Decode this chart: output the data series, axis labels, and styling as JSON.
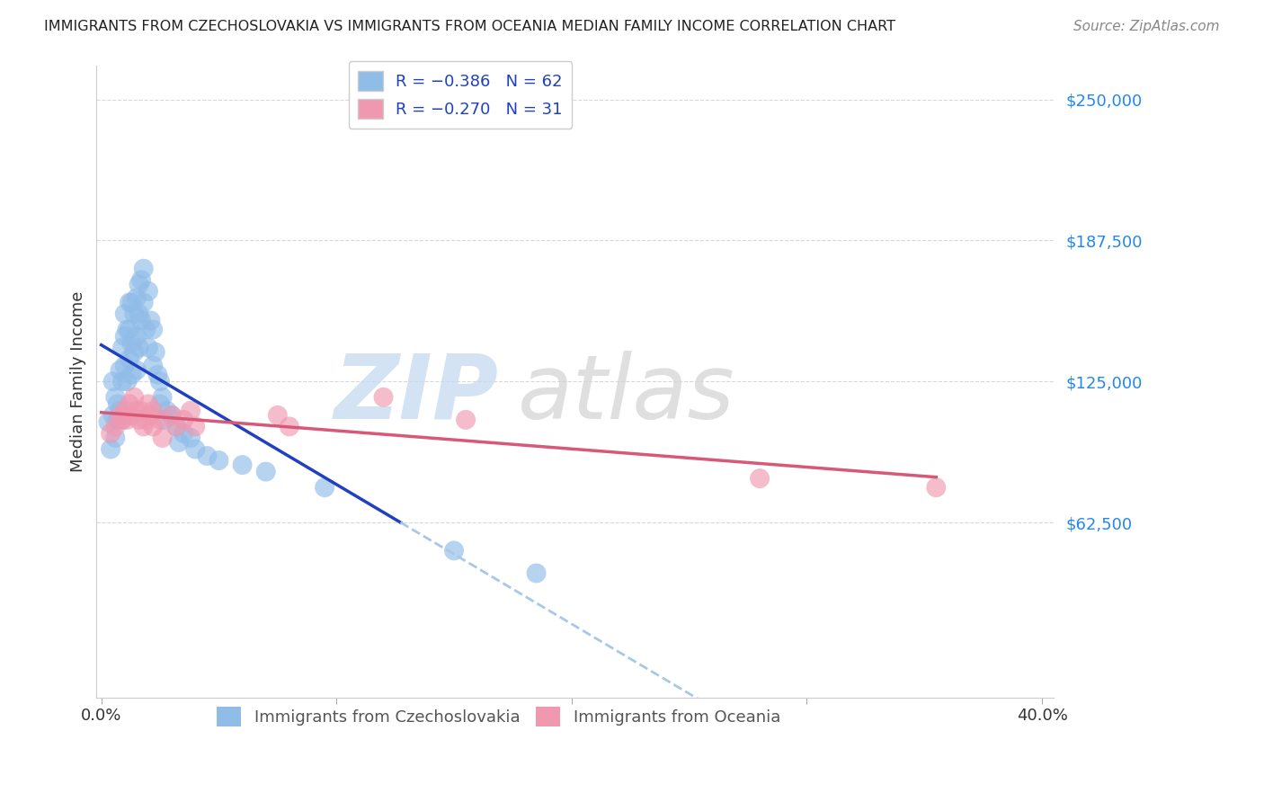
{
  "title": "IMMIGRANTS FROM CZECHOSLOVAKIA VS IMMIGRANTS FROM OCEANIA MEDIAN FAMILY INCOME CORRELATION CHART",
  "source": "Source: ZipAtlas.com",
  "ylabel": "Median Family Income",
  "ytick_labels": [
    "$62,500",
    "$125,000",
    "$187,500",
    "$250,000"
  ],
  "ytick_values": [
    62500,
    125000,
    187500,
    250000
  ],
  "ylim": [
    -15000,
    265000
  ],
  "xlim": [
    -0.002,
    0.405
  ],
  "blue_scatter_color": "#90bce8",
  "pink_scatter_color": "#f098b0",
  "blue_line_color": "#2040c0",
  "pink_line_color": "#d85878",
  "dashed_line_color": "#a8c8e8",
  "grid_color": "#d8d8d8",
  "blue_x": [
    0.003,
    0.004,
    0.005,
    0.005,
    0.006,
    0.006,
    0.007,
    0.007,
    0.008,
    0.008,
    0.009,
    0.009,
    0.009,
    0.01,
    0.01,
    0.01,
    0.011,
    0.011,
    0.012,
    0.012,
    0.012,
    0.013,
    0.013,
    0.013,
    0.014,
    0.014,
    0.015,
    0.015,
    0.015,
    0.016,
    0.016,
    0.016,
    0.017,
    0.017,
    0.018,
    0.018,
    0.019,
    0.02,
    0.02,
    0.021,
    0.022,
    0.022,
    0.023,
    0.024,
    0.025,
    0.025,
    0.026,
    0.027,
    0.028,
    0.03,
    0.032,
    0.033,
    0.035,
    0.038,
    0.04,
    0.045,
    0.05,
    0.06,
    0.07,
    0.095,
    0.15,
    0.185
  ],
  "blue_y": [
    107000,
    95000,
    125000,
    110000,
    118000,
    100000,
    115000,
    108000,
    130000,
    112000,
    140000,
    125000,
    108000,
    155000,
    145000,
    132000,
    148000,
    125000,
    160000,
    148000,
    135000,
    160000,
    142000,
    128000,
    155000,
    138000,
    162000,
    145000,
    130000,
    168000,
    155000,
    140000,
    170000,
    152000,
    175000,
    160000,
    148000,
    165000,
    140000,
    152000,
    148000,
    132000,
    138000,
    128000,
    125000,
    115000,
    118000,
    108000,
    112000,
    110000,
    105000,
    98000,
    102000,
    100000,
    95000,
    92000,
    90000,
    88000,
    85000,
    78000,
    50000,
    40000
  ],
  "pink_x": [
    0.004,
    0.006,
    0.008,
    0.009,
    0.01,
    0.011,
    0.012,
    0.013,
    0.014,
    0.015,
    0.016,
    0.017,
    0.018,
    0.019,
    0.02,
    0.021,
    0.022,
    0.022,
    0.025,
    0.026,
    0.03,
    0.032,
    0.035,
    0.038,
    0.04,
    0.075,
    0.08,
    0.12,
    0.155,
    0.28,
    0.355
  ],
  "pink_y": [
    102000,
    105000,
    110000,
    108000,
    112000,
    108000,
    115000,
    110000,
    118000,
    112000,
    108000,
    112000,
    105000,
    108000,
    115000,
    110000,
    105000,
    112000,
    108000,
    100000,
    110000,
    105000,
    108000,
    112000,
    105000,
    110000,
    105000,
    118000,
    108000,
    82000,
    78000
  ]
}
